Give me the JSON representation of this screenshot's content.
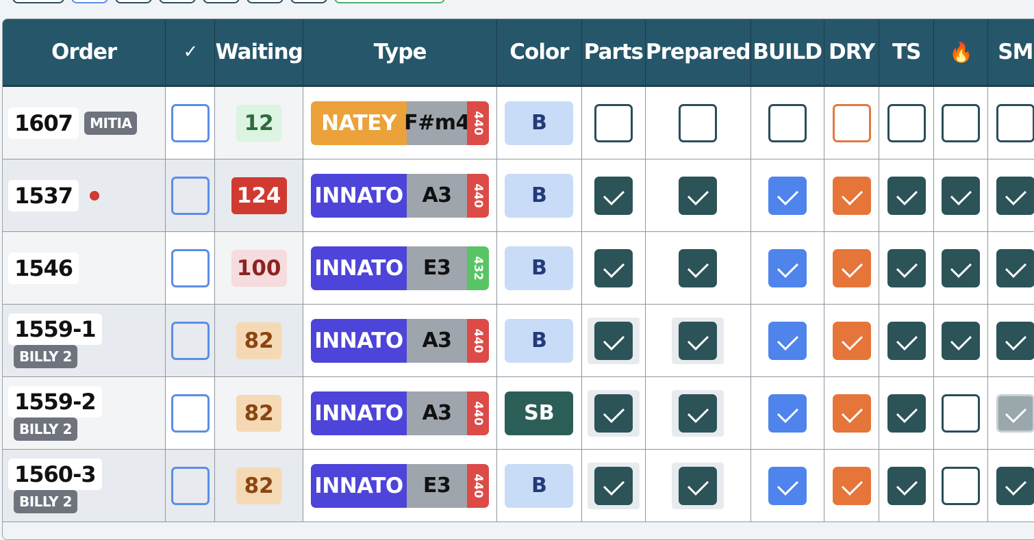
{
  "columns": [
    "Order",
    "✓",
    "Waiting",
    "Type",
    "Color",
    "Parts",
    "Prepared",
    "BUILD",
    "DRY",
    "TS",
    "🔥",
    "SM"
  ],
  "rows": [
    {
      "order": "1607",
      "tag": "MITIA",
      "dot": false,
      "waiting": "12",
      "waiting_style": "green",
      "type_name": "NATEY",
      "type_style": "natey",
      "key": "F#m4",
      "freq": "440",
      "freq_style": "red",
      "color": "B",
      "color_style": "light",
      "checks": {
        "select": false,
        "parts": false,
        "prepared": false,
        "build": false,
        "dry": false,
        "ts": false,
        "fire": false,
        "sm": false
      }
    },
    {
      "order": "1537",
      "tag": "",
      "dot": true,
      "waiting": "124",
      "waiting_style": "red",
      "type_name": "INNATO",
      "type_style": "innato",
      "key": "A3",
      "freq": "440",
      "freq_style": "red",
      "color": "B",
      "color_style": "light",
      "checks": {
        "select": false,
        "parts": true,
        "prepared": true,
        "build": true,
        "dry": true,
        "ts": true,
        "fire": true,
        "sm": true
      }
    },
    {
      "order": "1546",
      "tag": "",
      "dot": false,
      "waiting": "100",
      "waiting_style": "pink",
      "type_name": "INNATO",
      "type_style": "innato",
      "key": "E3",
      "freq": "432",
      "freq_style": "green",
      "color": "B",
      "color_style": "light",
      "checks": {
        "select": false,
        "parts": true,
        "prepared": true,
        "build": true,
        "dry": true,
        "ts": true,
        "fire": true,
        "sm": true
      }
    },
    {
      "order": "1559-1",
      "tag": "BILLY 2",
      "dot": false,
      "waiting": "82",
      "waiting_style": "peach",
      "type_name": "INNATO",
      "type_style": "innato",
      "key": "A3",
      "freq": "440",
      "freq_style": "red",
      "color": "B",
      "color_style": "light",
      "checks": {
        "select": false,
        "parts": true,
        "prepared": true,
        "build": true,
        "dry": true,
        "ts": true,
        "fire": true,
        "sm": true
      }
    },
    {
      "order": "1559-2",
      "tag": "BILLY 2",
      "dot": false,
      "waiting": "82",
      "waiting_style": "peach",
      "type_name": "INNATO",
      "type_style": "innato",
      "key": "A3",
      "freq": "440",
      "freq_style": "red",
      "color": "SB",
      "color_style": "dark",
      "checks": {
        "select": false,
        "parts": true,
        "prepared": true,
        "build": true,
        "dry": true,
        "ts": true,
        "fire": false,
        "sm": true
      }
    },
    {
      "order": "1560-3",
      "tag": "BILLY 2",
      "dot": false,
      "waiting": "82",
      "waiting_style": "peach",
      "type_name": "INNATO",
      "type_style": "innato",
      "key": "E3",
      "freq": "440",
      "freq_style": "red",
      "color": "B",
      "color_style": "light",
      "checks": {
        "select": false,
        "parts": true,
        "prepared": true,
        "build": true,
        "dry": true,
        "ts": true,
        "fire": false,
        "sm": true
      }
    }
  ],
  "colors": {
    "header_bg": "#26566a",
    "check_teal": "#2b5358",
    "check_blue": "#4e84ec",
    "check_orange": "#e57539",
    "natey": "#eba23a",
    "innato": "#4d44d9"
  }
}
